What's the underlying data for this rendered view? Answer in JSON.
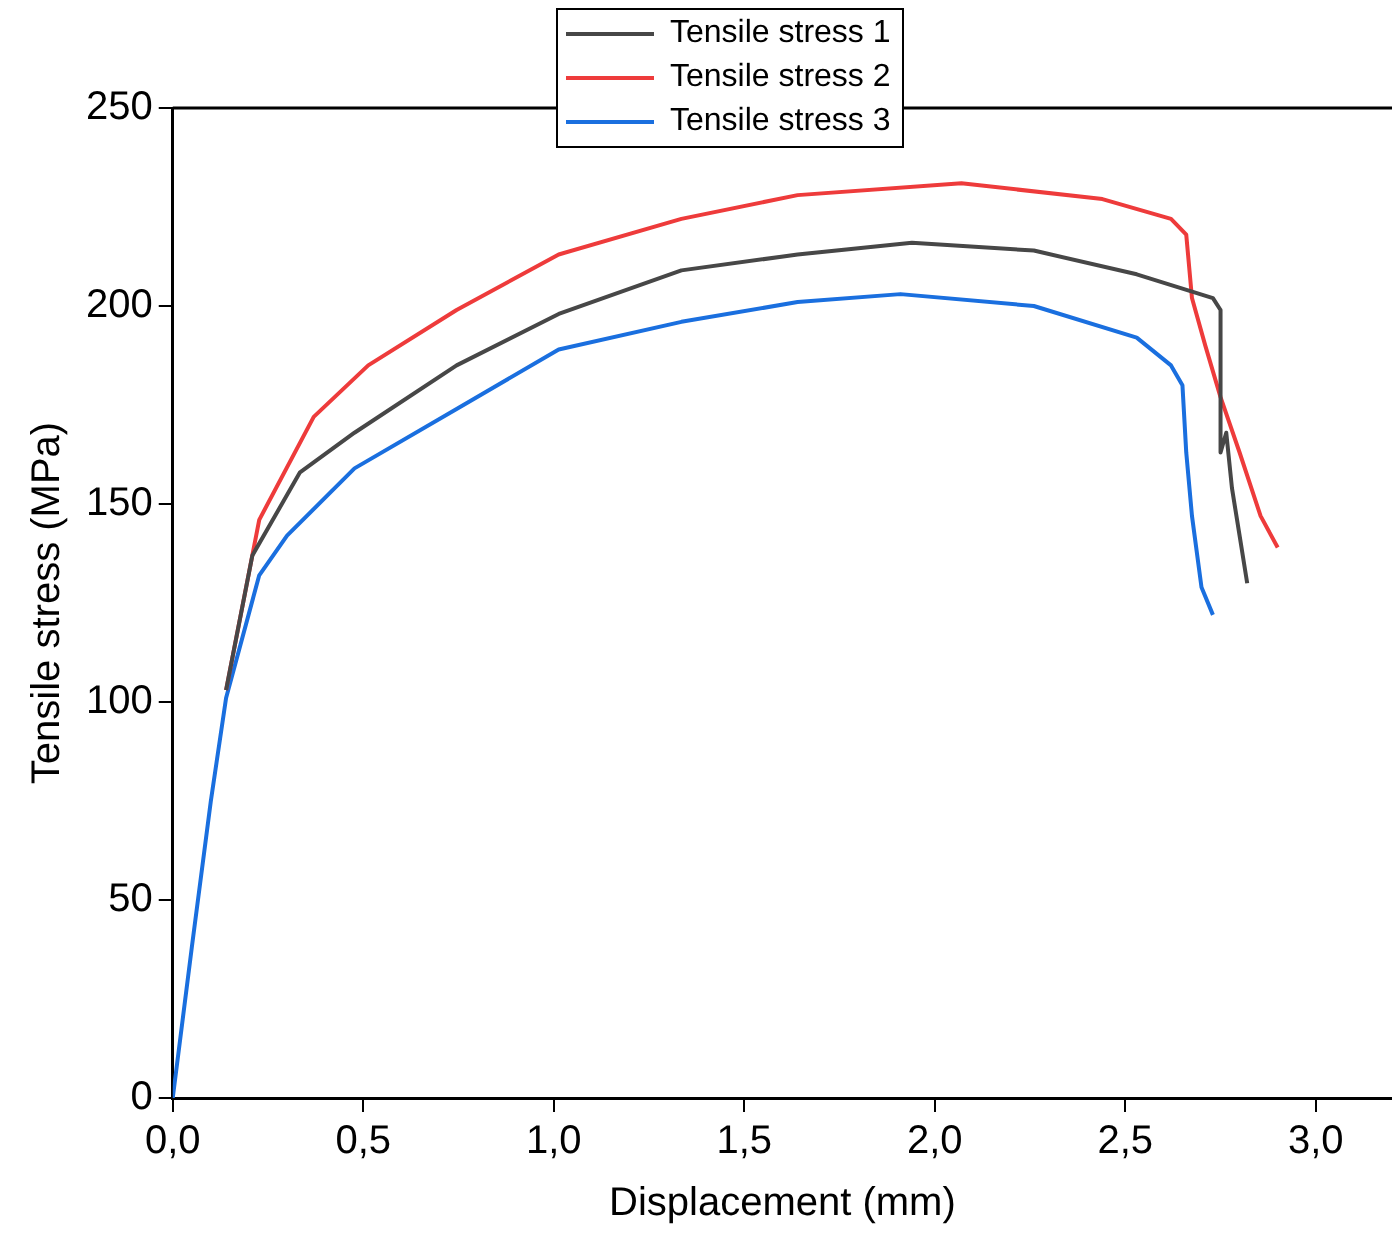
{
  "chart_data": {
    "type": "line",
    "xlabel": "Displacement (mm)",
    "ylabel": "Tensile stress (MPa)",
    "xlim": [
      0,
      3.2
    ],
    "ylim": [
      0,
      250
    ],
    "xticks": [
      {
        "value": 0,
        "label": "0,0"
      },
      {
        "value": 0.5,
        "label": "0,5"
      },
      {
        "value": 1,
        "label": "1,0"
      },
      {
        "value": 1.5,
        "label": "1,5"
      },
      {
        "value": 2,
        "label": "2,0"
      },
      {
        "value": 2.5,
        "label": "2,5"
      },
      {
        "value": 3,
        "label": "3,0"
      }
    ],
    "yticks": [
      0,
      50,
      100,
      150,
      200,
      250
    ],
    "legend": "top",
    "grid": false,
    "marker": "none",
    "line_style": "solid",
    "series": [
      {
        "name": "Tensile stress 1",
        "color": "#474747",
        "x": [
          0.14,
          0.209,
          0.334,
          0.477,
          0.745,
          1.013,
          1.335,
          1.64,
          1.94,
          2.26,
          2.53,
          2.73,
          2.75,
          2.75,
          2.765,
          2.78,
          2.8,
          2.82
        ],
        "values": [
          103,
          137,
          158,
          168,
          185,
          198,
          209,
          213,
          216,
          214,
          208,
          202,
          199,
          163,
          168,
          154,
          142,
          130
        ]
      },
      {
        "name": "Tensile stress 2",
        "color": "#ee3b3b",
        "x": [
          0.14,
          0.227,
          0.37,
          0.513,
          0.745,
          1.013,
          1.335,
          1.64,
          2.07,
          2.44,
          2.62,
          2.66,
          2.675,
          2.71,
          2.75,
          2.8,
          2.855,
          2.9
        ],
        "values": [
          103,
          146,
          172,
          185,
          199,
          213,
          222,
          228,
          231,
          227,
          222,
          218,
          202,
          190,
          177,
          163,
          147,
          139
        ]
      },
      {
        "name": "Tensile stress 3",
        "color": "#1a6fdf",
        "x": [
          0,
          0.05,
          0.1,
          0.14,
          0.227,
          0.3,
          0.477,
          0.745,
          1.013,
          1.335,
          1.64,
          1.91,
          2.26,
          2.53,
          2.62,
          2.65,
          2.66,
          2.675,
          2.7,
          2.73
        ],
        "values": [
          0,
          38,
          75,
          101,
          132,
          142,
          159,
          174,
          189,
          196,
          201,
          203,
          200,
          192,
          185,
          180,
          163,
          147,
          129,
          122
        ]
      }
    ]
  }
}
